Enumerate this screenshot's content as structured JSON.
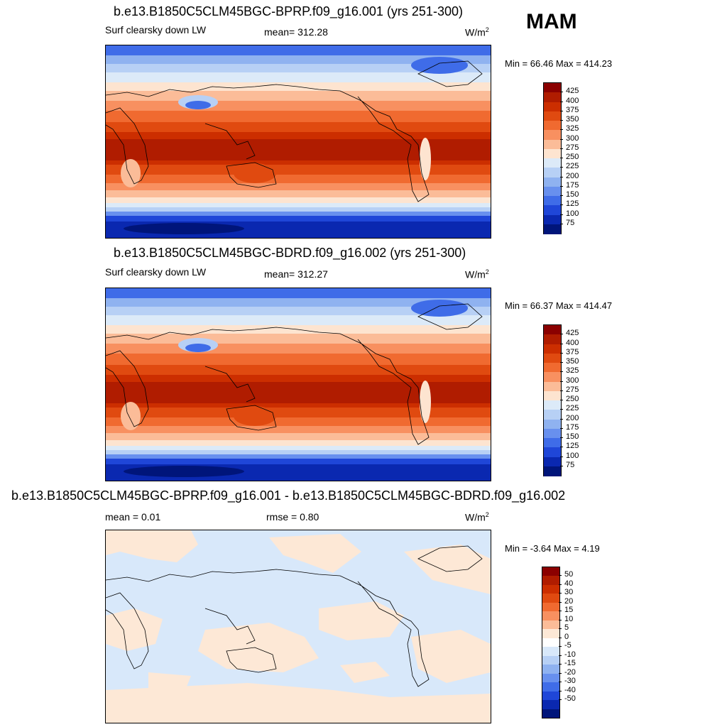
{
  "season": "MAM",
  "panels": [
    {
      "title": "b.e13.B1850C5CLM45BGC-BPRP.f09_g16.001 (yrs 251-300)",
      "left_label": "Surf clearsky down LW",
      "mid_label": "mean= 312.28",
      "units": "W/m",
      "units_sup": "2",
      "minmax": "Min =  66.46 Max = 414.23",
      "colorbar_labels": [
        "425",
        "400",
        "375",
        "350",
        "325",
        "300",
        "275",
        "250",
        "225",
        "200",
        "175",
        "150",
        "125",
        "100",
        "75"
      ],
      "kind": "abs"
    },
    {
      "title": "b.e13.B1850C5CLM45BGC-BDRD.f09_g16.002 (yrs 251-300)",
      "left_label": "Surf clearsky down LW",
      "mid_label": "mean= 312.27",
      "units": "W/m",
      "units_sup": "2",
      "minmax": "Min =  66.37 Max = 414.47",
      "colorbar_labels": [
        "425",
        "400",
        "375",
        "350",
        "325",
        "300",
        "275",
        "250",
        "225",
        "200",
        "175",
        "150",
        "125",
        "100",
        "75"
      ],
      "kind": "abs"
    },
    {
      "title": "b.e13.B1850C5CLM45BGC-BPRP.f09_g16.001 - b.e13.B1850C5CLM45BGC-BDRD.f09_g16.002",
      "left_label": "mean =   0.01",
      "mid_label": "rmse =   0.80",
      "units": "W/m",
      "units_sup": "2",
      "minmax": "Min =  -3.64 Max =   4.19",
      "colorbar_labels": [
        "50",
        "40",
        "30",
        "20",
        "15",
        "10",
        "5",
        "0",
        "-5",
        "-10",
        "-15",
        "-20",
        "-30",
        "-40",
        "-50"
      ],
      "kind": "diff"
    }
  ],
  "colors": {
    "abs_scale": [
      "#8b0000",
      "#b01c00",
      "#cc2e00",
      "#e04a10",
      "#f06a30",
      "#f89060",
      "#fbbc98",
      "#fde4d0",
      "#dceaf8",
      "#b7d0f5",
      "#8fb2f0",
      "#6890ee",
      "#3f6ce8",
      "#1f46d8",
      "#0a28b0",
      "#00157a"
    ],
    "diff_scale": [
      "#8b0000",
      "#b01c00",
      "#cc2e00",
      "#e04a10",
      "#f06a30",
      "#f89060",
      "#fbbc98",
      "#fde8d6",
      "#ffffff",
      "#d8e8fa",
      "#b7d0f5",
      "#8fb2f0",
      "#6890ee",
      "#3f6ce8",
      "#1f46d8",
      "#0a28b0",
      "#00157a"
    ]
  },
  "colorbar_data": [
    {
      "levels": [
        75,
        100,
        125,
        150,
        175,
        200,
        225,
        250,
        275,
        300,
        325,
        350,
        375,
        400,
        425
      ]
    },
    {
      "levels": [
        75,
        100,
        125,
        150,
        175,
        200,
        225,
        250,
        275,
        300,
        325,
        350,
        375,
        400,
        425
      ]
    },
    {
      "levels": [
        -50,
        -40,
        -30,
        -20,
        -15,
        -10,
        -5,
        0,
        5,
        10,
        15,
        20,
        30,
        40,
        50
      ]
    }
  ]
}
